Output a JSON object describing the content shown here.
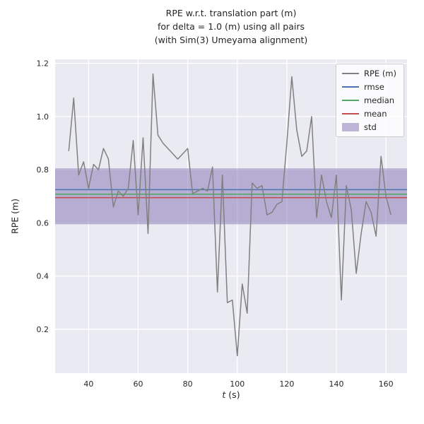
{
  "chart_data": {
    "type": "line",
    "title_lines": [
      "RPE w.r.t. translation part (m)",
      "for delta = 1.0 (m) using all pairs",
      "(with Sim(3) Umeyama alignment)"
    ],
    "xlabel_var": "t",
    "xlabel_unit": " (s)",
    "ylabel": "RPE (m)",
    "xlim": [
      26.5,
      168.5
    ],
    "ylim": [
      0.035,
      1.215
    ],
    "xticks": [
      40,
      60,
      80,
      100,
      120,
      140,
      160
    ],
    "yticks": [
      0.2,
      0.4,
      0.6,
      0.8,
      1.0,
      1.2
    ],
    "grid": true,
    "legend_position": "upper right",
    "stats": {
      "rmse": 0.725,
      "median": 0.708,
      "mean": 0.695,
      "std": 0.105
    },
    "std_band": [
      0.595,
      0.805
    ],
    "series": [
      {
        "name": "RPE (m)",
        "x": [
          32,
          34,
          36,
          38,
          40,
          42,
          44,
          46,
          48,
          50,
          52,
          54,
          56,
          58,
          60,
          62,
          64,
          66,
          68,
          70,
          72,
          74,
          76,
          78,
          80,
          82,
          84,
          86,
          88,
          90,
          92,
          94,
          96,
          98,
          100,
          102,
          104,
          106,
          108,
          110,
          112,
          114,
          116,
          118,
          120,
          122,
          124,
          126,
          128,
          130,
          132,
          134,
          136,
          138,
          140,
          142,
          144,
          146,
          148,
          150,
          152,
          154,
          156,
          158,
          160,
          162
        ],
        "y": [
          0.87,
          1.07,
          0.78,
          0.83,
          0.73,
          0.82,
          0.8,
          0.88,
          0.84,
          0.66,
          0.72,
          0.7,
          0.73,
          0.91,
          0.63,
          0.92,
          0.56,
          1.16,
          0.93,
          0.9,
          0.88,
          0.86,
          0.84,
          0.86,
          0.88,
          0.71,
          0.72,
          0.73,
          0.72,
          0.81,
          0.34,
          0.78,
          0.3,
          0.31,
          0.1,
          0.37,
          0.26,
          0.75,
          0.73,
          0.74,
          0.63,
          0.64,
          0.67,
          0.68,
          0.9,
          1.15,
          0.95,
          0.85,
          0.87,
          1.0,
          0.62,
          0.78,
          0.68,
          0.62,
          0.78,
          0.31,
          0.74,
          0.65,
          0.41,
          0.56,
          0.68,
          0.64,
          0.55,
          0.85,
          0.7,
          0.63
        ]
      }
    ],
    "colors": {
      "rpe": "#808080",
      "rmse": "#4C72B0",
      "median": "#55A868",
      "mean": "#C44E52",
      "std": "#8172B2",
      "axes_bg": "#EAEAF2",
      "grid": "#FFFFFF",
      "text": "#262626"
    }
  },
  "legend": {
    "items": [
      {
        "label": "RPE (m)",
        "color_key": "rpe",
        "swatch": "line"
      },
      {
        "label": "rmse",
        "color_key": "rmse",
        "swatch": "line"
      },
      {
        "label": "median",
        "color_key": "median",
        "swatch": "line"
      },
      {
        "label": "mean",
        "color_key": "mean",
        "swatch": "line"
      },
      {
        "label": "std",
        "color_key": "std",
        "swatch": "patch"
      }
    ]
  }
}
